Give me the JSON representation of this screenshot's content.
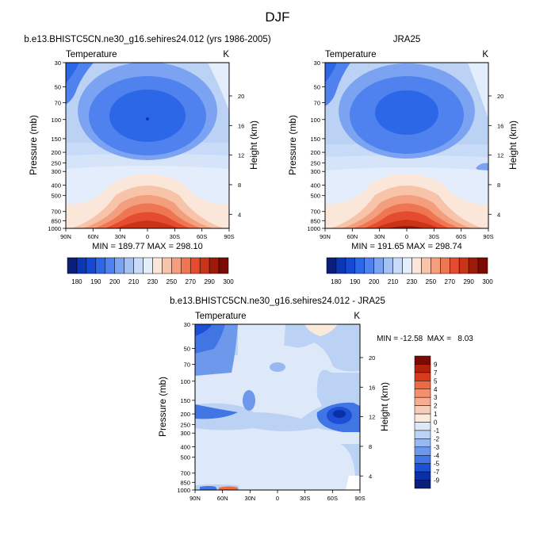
{
  "title": "DJF",
  "chart_data": [
    {
      "type": "heatmap",
      "title": "b.e13.BHISTC5CN.ne30_g16.sehires24.012 (yrs 1986-2005)",
      "subtitle_left": "Temperature",
      "subtitle_right": "K",
      "ylabel": "Pressure (mb)",
      "ylabel_right": "Height (km)",
      "xticks": [
        "90N",
        "60N",
        "30N",
        "0",
        "30S",
        "60S",
        "90S"
      ],
      "yticks": [
        "30",
        "50",
        "70",
        "100",
        "150",
        "200",
        "250",
        "300",
        "400",
        "500",
        "700",
        "850",
        "1000"
      ],
      "yticks_right": [
        "20",
        "16",
        "12",
        "8",
        "4"
      ],
      "minmax": "MIN = 189.77  MAX = 298.10",
      "colorbar": {
        "labels": [
          "180",
          "190",
          "200",
          "210",
          "230",
          "250",
          "270",
          "290",
          "300"
        ],
        "colors": [
          "#0a1e7a",
          "#0b37b4",
          "#1549d4",
          "#2c67e8",
          "#4f82ee",
          "#7ba3f2",
          "#a3c1f5",
          "#c7daf8",
          "#e3edfb",
          "#fbe6da",
          "#f7c4aa",
          "#f39e7c",
          "#ee7652",
          "#e54b2e",
          "#c93418",
          "#9e1a08",
          "#7a0a04"
        ]
      }
    },
    {
      "type": "heatmap",
      "title": "JRA25",
      "subtitle_left": "Temperature",
      "subtitle_right": "K",
      "ylabel": "Pressure (mb)",
      "ylabel_right": "Height (km)",
      "xticks": [
        "90N",
        "60N",
        "30N",
        "0",
        "30S",
        "60S",
        "90S"
      ],
      "yticks": [
        "30",
        "50",
        "70",
        "100",
        "150",
        "200",
        "250",
        "300",
        "400",
        "500",
        "700",
        "850",
        "1000"
      ],
      "yticks_right": [
        "20",
        "16",
        "12",
        "8",
        "4"
      ],
      "minmax": "MIN = 191.65  MAX = 298.74",
      "colorbar": {
        "labels": [
          "180",
          "190",
          "200",
          "210",
          "230",
          "250",
          "270",
          "290",
          "300"
        ],
        "colors": [
          "#0a1e7a",
          "#0b37b4",
          "#1549d4",
          "#2c67e8",
          "#4f82ee",
          "#7ba3f2",
          "#a3c1f5",
          "#c7daf8",
          "#e3edfb",
          "#fbe6da",
          "#f7c4aa",
          "#f39e7c",
          "#ee7652",
          "#e54b2e",
          "#c93418",
          "#9e1a08",
          "#7a0a04"
        ]
      }
    },
    {
      "type": "heatmap",
      "title": "b.e13.BHISTC5CN.ne30_g16.sehires24.012 - JRA25",
      "subtitle_left": "Temperature",
      "subtitle_right": "K",
      "ylabel": "Pressure (mb)",
      "ylabel_right": "Height (km)",
      "xticks": [
        "90N",
        "60N",
        "30N",
        "0",
        "30S",
        "60S",
        "90S"
      ],
      "yticks": [
        "30",
        "50",
        "70",
        "100",
        "150",
        "200",
        "250",
        "300",
        "400",
        "500",
        "700",
        "850",
        "1000"
      ],
      "yticks_right": [
        "20",
        "16",
        "12",
        "8",
        "4"
      ],
      "minmax": "MIN = -12.58  MAX =   8.03",
      "colorbar": {
        "labels": [
          "9",
          "7",
          "5",
          "4",
          "3",
          "2",
          "1",
          "0",
          "-1",
          "-2",
          "-3",
          "-4",
          "-5",
          "-7",
          "-9"
        ],
        "colors": [
          "#7a0a04",
          "#b3200c",
          "#d93a1c",
          "#ee6a44",
          "#f28f6c",
          "#f5ae92",
          "#f8cdb7",
          "#fbe9dc",
          "#dde8f8",
          "#bcd2f5",
          "#98b8f1",
          "#6d98ec",
          "#4275e4",
          "#1a4fd6",
          "#0b30a6",
          "#0a1e7a"
        ]
      }
    }
  ]
}
